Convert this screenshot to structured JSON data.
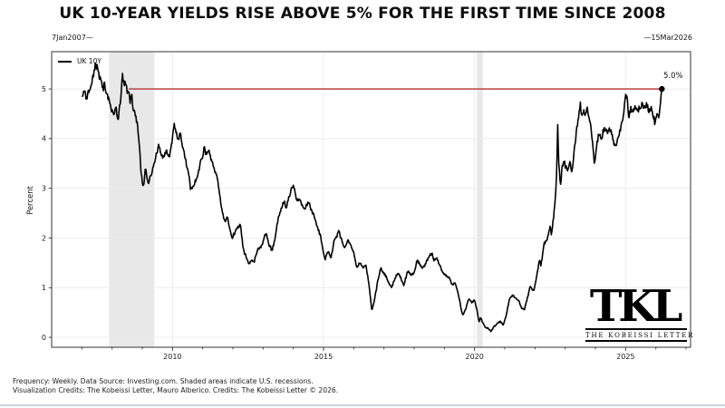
{
  "title": "UK 10-YEAR YIELDS RISE ABOVE 5% FOR THE FIRST TIME SINCE 2008",
  "date_range": {
    "start": "7Jan2007—",
    "end": "—15Mar2026"
  },
  "legend": {
    "label": "UK 10Y"
  },
  "axes": {
    "ylabel": "Percent"
  },
  "annotation": {
    "label": "5.0%"
  },
  "logo": {
    "monogram": "TKL",
    "name": "THE KOBEISSI LETTER"
  },
  "footer": {
    "line1": "Frequency: Weekly. Data Source: Investing.com. Shaded areas indicate U.S. recessions.",
    "line2": "Visualization Credits: The Kobeissi Letter, Mauro Alberico. Credits: The Kobeissi Letter © 2026."
  },
  "colors": {
    "series": "#000000",
    "threshold_line": "#c25a5a",
    "recession_band": "#e8e8e8",
    "grid": "#ececec",
    "axis": "#333333",
    "tick_text": "#1a1a1a"
  },
  "chart_data": {
    "type": "line",
    "title": "UK 10-YEAR YIELDS RISE ABOVE 5% FOR THE FIRST TIME SINCE 2008",
    "ylabel": "Percent",
    "series_name": "UK 10Y",
    "frequency": "Weekly",
    "x_start_date": "7 Jan 2007",
    "x_end_date": "15 Mar 2026",
    "xlim": [
      2006.0,
      2027.15
    ],
    "ylim": [
      -0.2,
      5.75
    ],
    "xticks": [
      2010,
      2015,
      2020,
      2025
    ],
    "minor_xtick_years": [
      2007,
      2008,
      2009,
      2010,
      2011,
      2012,
      2013,
      2014,
      2015,
      2016,
      2017,
      2018,
      2019,
      2020,
      2021,
      2022,
      2023,
      2024,
      2025,
      2026,
      2027
    ],
    "yticks": [
      0,
      1,
      2,
      3,
      4,
      5
    ],
    "grid": true,
    "legend_position": "upper-left",
    "recessions": [
      [
        2007.9,
        2009.4
      ],
      [
        2020.08,
        2020.27
      ]
    ],
    "threshold": {
      "value": 5.0,
      "x_start": 2008.55,
      "x_end": 2026.2,
      "label": "5.0%"
    },
    "last_point": {
      "x": 2026.2,
      "y": 5.0,
      "marker": "dot"
    },
    "anchors": [
      [
        2007.02,
        4.85
      ],
      [
        2007.08,
        4.95
      ],
      [
        2007.15,
        4.82
      ],
      [
        2007.22,
        4.95
      ],
      [
        2007.3,
        5.05
      ],
      [
        2007.38,
        5.25
      ],
      [
        2007.45,
        5.5
      ],
      [
        2007.5,
        5.45
      ],
      [
        2007.55,
        5.3
      ],
      [
        2007.62,
        5.15
      ],
      [
        2007.7,
        5.0
      ],
      [
        2007.75,
        5.1
      ],
      [
        2007.82,
        4.9
      ],
      [
        2007.9,
        4.75
      ],
      [
        2007.97,
        4.6
      ],
      [
        2008.05,
        4.5
      ],
      [
        2008.12,
        4.65
      ],
      [
        2008.2,
        4.4
      ],
      [
        2008.28,
        4.75
      ],
      [
        2008.34,
        5.3
      ],
      [
        2008.4,
        5.05
      ],
      [
        2008.45,
        5.15
      ],
      [
        2008.5,
        4.95
      ],
      [
        2008.55,
        5.0
      ],
      [
        2008.6,
        4.75
      ],
      [
        2008.65,
        4.85
      ],
      [
        2008.7,
        4.6
      ],
      [
        2008.78,
        4.5
      ],
      [
        2008.85,
        4.2
      ],
      [
        2008.9,
        3.9
      ],
      [
        2008.95,
        3.4
      ],
      [
        2009.0,
        3.15
      ],
      [
        2009.05,
        3.0
      ],
      [
        2009.1,
        3.45
      ],
      [
        2009.15,
        3.25
      ],
      [
        2009.2,
        3.1
      ],
      [
        2009.3,
        3.3
      ],
      [
        2009.4,
        3.55
      ],
      [
        2009.5,
        3.75
      ],
      [
        2009.55,
        3.9
      ],
      [
        2009.6,
        3.7
      ],
      [
        2009.7,
        3.6
      ],
      [
        2009.8,
        3.75
      ],
      [
        2009.9,
        3.65
      ],
      [
        2009.95,
        3.85
      ],
      [
        2010.0,
        4.0
      ],
      [
        2010.05,
        4.28
      ],
      [
        2010.12,
        4.1
      ],
      [
        2010.2,
        4.0
      ],
      [
        2010.25,
        4.15
      ],
      [
        2010.3,
        3.95
      ],
      [
        2010.4,
        3.65
      ],
      [
        2010.5,
        3.4
      ],
      [
        2010.55,
        3.25
      ],
      [
        2010.6,
        2.95
      ],
      [
        2010.7,
        3.05
      ],
      [
        2010.8,
        3.2
      ],
      [
        2010.9,
        3.45
      ],
      [
        2010.95,
        3.55
      ],
      [
        2011.0,
        3.65
      ],
      [
        2011.05,
        3.85
      ],
      [
        2011.1,
        3.7
      ],
      [
        2011.2,
        3.75
      ],
      [
        2011.3,
        3.55
      ],
      [
        2011.4,
        3.35
      ],
      [
        2011.5,
        3.15
      ],
      [
        2011.55,
        2.9
      ],
      [
        2011.65,
        2.5
      ],
      [
        2011.75,
        2.3
      ],
      [
        2011.8,
        2.45
      ],
      [
        2011.9,
        2.2
      ],
      [
        2011.97,
        2.0
      ],
      [
        2012.05,
        2.1
      ],
      [
        2012.15,
        2.2
      ],
      [
        2012.25,
        2.25
      ],
      [
        2012.35,
        1.75
      ],
      [
        2012.45,
        1.6
      ],
      [
        2012.55,
        1.45
      ],
      [
        2012.6,
        1.55
      ],
      [
        2012.7,
        1.5
      ],
      [
        2012.8,
        1.75
      ],
      [
        2012.9,
        1.8
      ],
      [
        2012.97,
        1.85
      ],
      [
        2013.05,
        2.05
      ],
      [
        2013.1,
        2.1
      ],
      [
        2013.2,
        1.85
      ],
      [
        2013.3,
        1.75
      ],
      [
        2013.4,
        2.0
      ],
      [
        2013.5,
        2.4
      ],
      [
        2013.6,
        2.6
      ],
      [
        2013.7,
        2.75
      ],
      [
        2013.75,
        2.6
      ],
      [
        2013.85,
        2.8
      ],
      [
        2013.95,
        3.0
      ],
      [
        2014.0,
        3.05
      ],
      [
        2014.1,
        2.8
      ],
      [
        2014.2,
        2.75
      ],
      [
        2014.3,
        2.65
      ],
      [
        2014.4,
        2.6
      ],
      [
        2014.5,
        2.75
      ],
      [
        2014.6,
        2.55
      ],
      [
        2014.7,
        2.45
      ],
      [
        2014.8,
        2.2
      ],
      [
        2014.9,
        2.05
      ],
      [
        2014.97,
        1.8
      ],
      [
        2015.05,
        1.55
      ],
      [
        2015.15,
        1.75
      ],
      [
        2015.25,
        1.6
      ],
      [
        2015.35,
        1.95
      ],
      [
        2015.45,
        2.05
      ],
      [
        2015.5,
        2.15
      ],
      [
        2015.6,
        1.95
      ],
      [
        2015.7,
        1.8
      ],
      [
        2015.8,
        1.95
      ],
      [
        2015.9,
        1.85
      ],
      [
        2016.0,
        1.7
      ],
      [
        2016.1,
        1.4
      ],
      [
        2016.2,
        1.5
      ],
      [
        2016.3,
        1.4
      ],
      [
        2016.4,
        1.45
      ],
      [
        2016.5,
        1.1
      ],
      [
        2016.6,
        0.55
      ],
      [
        2016.65,
        0.65
      ],
      [
        2016.7,
        0.8
      ],
      [
        2016.8,
        1.15
      ],
      [
        2016.9,
        1.4
      ],
      [
        2016.97,
        1.3
      ],
      [
        2017.05,
        1.25
      ],
      [
        2017.15,
        1.1
      ],
      [
        2017.25,
        1.0
      ],
      [
        2017.35,
        1.15
      ],
      [
        2017.45,
        1.3
      ],
      [
        2017.55,
        1.2
      ],
      [
        2017.65,
        1.05
      ],
      [
        2017.7,
        1.15
      ],
      [
        2017.8,
        1.35
      ],
      [
        2017.9,
        1.25
      ],
      [
        2018.0,
        1.3
      ],
      [
        2018.1,
        1.55
      ],
      [
        2018.2,
        1.45
      ],
      [
        2018.3,
        1.4
      ],
      [
        2018.4,
        1.5
      ],
      [
        2018.5,
        1.65
      ],
      [
        2018.6,
        1.7
      ],
      [
        2018.65,
        1.55
      ],
      [
        2018.75,
        1.6
      ],
      [
        2018.85,
        1.45
      ],
      [
        2018.95,
        1.3
      ],
      [
        2019.05,
        1.25
      ],
      [
        2019.15,
        1.2
      ],
      [
        2019.25,
        1.05
      ],
      [
        2019.35,
        1.1
      ],
      [
        2019.45,
        0.9
      ],
      [
        2019.55,
        0.6
      ],
      [
        2019.6,
        0.45
      ],
      [
        2019.7,
        0.55
      ],
      [
        2019.8,
        0.78
      ],
      [
        2019.9,
        0.7
      ],
      [
        2020.0,
        0.75
      ],
      [
        2020.08,
        0.55
      ],
      [
        2020.15,
        0.3
      ],
      [
        2020.2,
        0.4
      ],
      [
        2020.27,
        0.3
      ],
      [
        2020.35,
        0.2
      ],
      [
        2020.45,
        0.18
      ],
      [
        2020.55,
        0.12
      ],
      [
        2020.65,
        0.22
      ],
      [
        2020.75,
        0.28
      ],
      [
        2020.85,
        0.32
      ],
      [
        2020.95,
        0.25
      ],
      [
        2021.05,
        0.45
      ],
      [
        2021.15,
        0.75
      ],
      [
        2021.25,
        0.85
      ],
      [
        2021.35,
        0.8
      ],
      [
        2021.45,
        0.75
      ],
      [
        2021.55,
        0.6
      ],
      [
        2021.65,
        0.55
      ],
      [
        2021.75,
        0.8
      ],
      [
        2021.85,
        1.05
      ],
      [
        2021.9,
        0.95
      ],
      [
        2021.97,
        0.95
      ],
      [
        2022.05,
        1.2
      ],
      [
        2022.15,
        1.55
      ],
      [
        2022.2,
        1.45
      ],
      [
        2022.3,
        1.9
      ],
      [
        2022.4,
        1.95
      ],
      [
        2022.5,
        2.25
      ],
      [
        2022.55,
        2.05
      ],
      [
        2022.62,
        2.45
      ],
      [
        2022.68,
        2.9
      ],
      [
        2022.72,
        3.3
      ],
      [
        2022.75,
        4.35
      ],
      [
        2022.78,
        3.55
      ],
      [
        2022.8,
        3.4
      ],
      [
        2022.84,
        3.05
      ],
      [
        2022.9,
        3.4
      ],
      [
        2022.95,
        3.6
      ],
      [
        2023.0,
        3.45
      ],
      [
        2023.08,
        3.35
      ],
      [
        2023.15,
        3.55
      ],
      [
        2023.22,
        3.3
      ],
      [
        2023.3,
        3.75
      ],
      [
        2023.38,
        4.2
      ],
      [
        2023.45,
        4.45
      ],
      [
        2023.5,
        4.7
      ],
      [
        2023.55,
        4.4
      ],
      [
        2023.62,
        4.55
      ],
      [
        2023.68,
        4.45
      ],
      [
        2023.72,
        4.6
      ],
      [
        2023.78,
        4.5
      ],
      [
        2023.85,
        4.25
      ],
      [
        2023.92,
        3.8
      ],
      [
        2023.97,
        3.5
      ],
      [
        2024.05,
        3.9
      ],
      [
        2024.12,
        4.1
      ],
      [
        2024.2,
        4.0
      ],
      [
        2024.3,
        4.25
      ],
      [
        2024.4,
        4.1
      ],
      [
        2024.5,
        4.2
      ],
      [
        2024.6,
        3.95
      ],
      [
        2024.68,
        3.8
      ],
      [
        2024.75,
        4.0
      ],
      [
        2024.85,
        4.25
      ],
      [
        2024.92,
        4.45
      ],
      [
        2024.99,
        4.85
      ],
      [
        2025.05,
        4.8
      ],
      [
        2025.1,
        4.45
      ],
      [
        2025.18,
        4.6
      ],
      [
        2025.25,
        4.5
      ],
      [
        2025.32,
        4.65
      ],
      [
        2025.4,
        4.55
      ],
      [
        2025.48,
        4.65
      ],
      [
        2025.55,
        4.7
      ],
      [
        2025.62,
        4.6
      ],
      [
        2025.7,
        4.68
      ],
      [
        2025.78,
        4.55
      ],
      [
        2025.85,
        4.62
      ],
      [
        2025.9,
        4.5
      ],
      [
        2025.97,
        4.32
      ],
      [
        2026.05,
        4.55
      ],
      [
        2026.1,
        4.4
      ],
      [
        2026.14,
        4.6
      ],
      [
        2026.2,
        5.0
      ]
    ]
  }
}
